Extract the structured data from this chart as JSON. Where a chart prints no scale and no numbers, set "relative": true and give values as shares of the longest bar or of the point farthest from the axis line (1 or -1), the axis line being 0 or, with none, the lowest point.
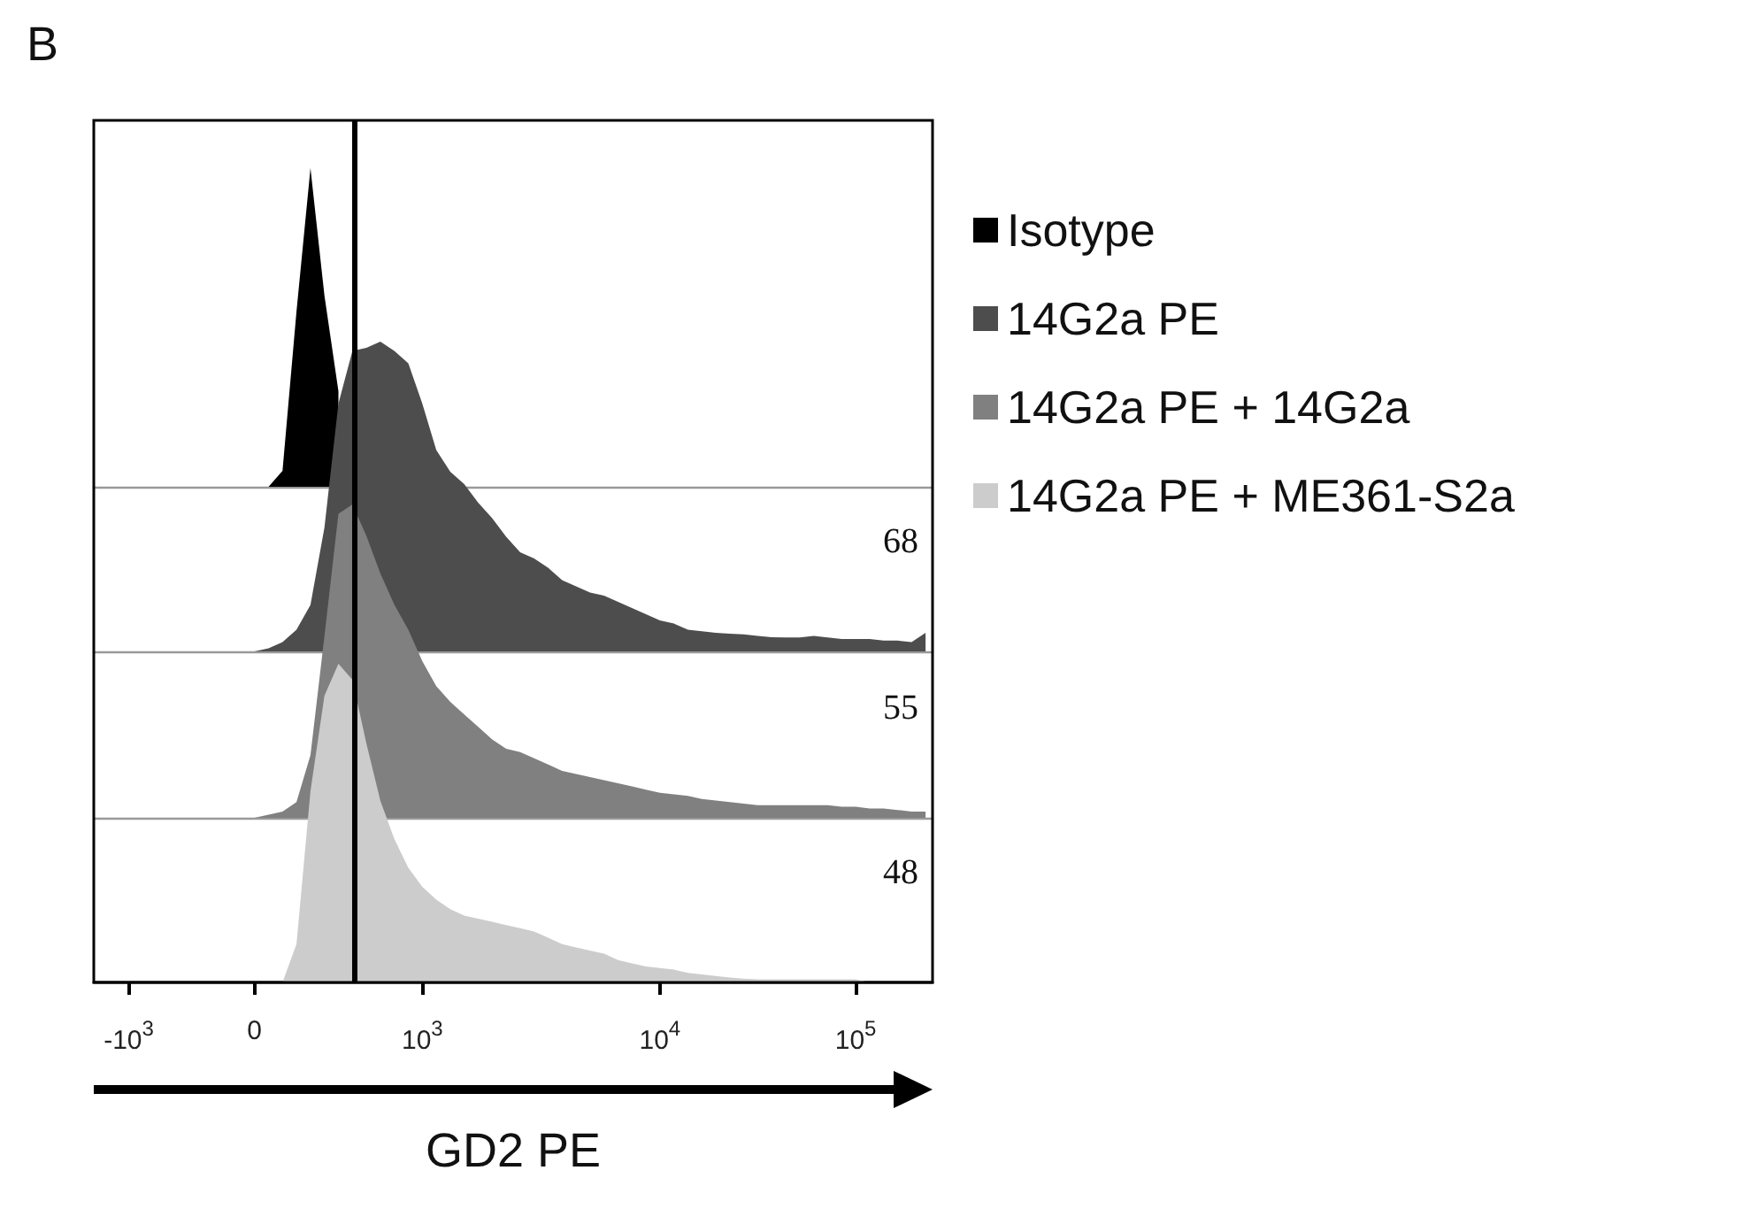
{
  "chart_data": [
    {
      "type": "area",
      "title": "B",
      "relative": true,
      "tick_labels": false,
      "legend": "right",
      "categories": [
        null,
        null,
        null,
        null,
        null,
        null,
        null,
        null,
        null,
        null,
        null,
        null,
        null,
        null,
        null,
        null,
        null,
        null,
        null,
        null,
        null,
        null,
        null,
        null,
        null,
        null,
        null,
        null,
        null,
        null,
        null,
        null,
        null,
        null,
        null,
        null,
        null,
        null,
        null,
        null,
        null,
        null,
        null,
        null,
        null,
        null,
        null,
        null,
        null,
        null,
        null,
        null,
        null,
        null,
        null,
        null,
        null,
        null,
        null,
        null
      ],
      "series": [
        {
          "name": "Isotype",
          "color": "#000000",
          "values": [
            0,
            0,
            0,
            0,
            0,
            0,
            0,
            0,
            0,
            0,
            0,
            0,
            0,
            0.05,
            0.55,
            1.0,
            0.6,
            0.3,
            null,
            null,
            null,
            null,
            null,
            null,
            null,
            null,
            null,
            null,
            null,
            null,
            null,
            null,
            null,
            null,
            null,
            null,
            null,
            null,
            null,
            null,
            null,
            null,
            null,
            null,
            null,
            null,
            null,
            null,
            null,
            null,
            null,
            null,
            null,
            null,
            null,
            null,
            null,
            null,
            null,
            null
          ]
        }
      ]
    },
    {
      "type": "area",
      "relative": true,
      "tick_labels": false,
      "legend": "right",
      "annotations": [
        "68"
      ],
      "categories": [
        null,
        null,
        null,
        null,
        null,
        null,
        null,
        null,
        null,
        null,
        null,
        null,
        null,
        null,
        null,
        null,
        null,
        null,
        null,
        null,
        null,
        null,
        null,
        null,
        null,
        null,
        null,
        null,
        null,
        null,
        null,
        null,
        null,
        null,
        null,
        null,
        null,
        null,
        null,
        null,
        null,
        null,
        null,
        null,
        null,
        null,
        null,
        null,
        null,
        null,
        null,
        null,
        null,
        null,
        null,
        null,
        null,
        null,
        null,
        null
      ],
      "series": [
        {
          "name": "14G2a PE",
          "color": "#4d4d4d",
          "values": [
            0,
            0,
            0,
            0,
            0,
            0,
            0,
            0,
            0,
            0,
            0,
            0,
            0.01,
            0.03,
            0.07,
            0.15,
            0.4,
            0.8,
            0.97,
            0.98,
            1.0,
            0.97,
            0.93,
            0.8,
            0.65,
            0.58,
            0.54,
            0.48,
            0.43,
            0.37,
            0.32,
            0.3,
            0.27,
            0.23,
            0.21,
            0.19,
            0.18,
            0.16,
            0.14,
            0.12,
            0.1,
            0.09,
            0.07,
            0.065,
            0.06,
            0.057,
            0.055,
            0.05,
            0.046,
            0.045,
            0.045,
            0.05,
            0.045,
            0.04,
            0.04,
            0.04,
            0.035,
            0.035,
            0.03,
            0.06
          ]
        }
      ]
    },
    {
      "type": "area",
      "relative": true,
      "tick_labels": false,
      "legend": "right",
      "annotations": [
        "55"
      ],
      "categories": [
        null,
        null,
        null,
        null,
        null,
        null,
        null,
        null,
        null,
        null,
        null,
        null,
        null,
        null,
        null,
        null,
        null,
        null,
        null,
        null,
        null,
        null,
        null,
        null,
        null,
        null,
        null,
        null,
        null,
        null,
        null,
        null,
        null,
        null,
        null,
        null,
        null,
        null,
        null,
        null,
        null,
        null,
        null,
        null,
        null,
        null,
        null,
        null,
        null,
        null,
        null,
        null,
        null,
        null,
        null,
        null,
        null,
        null,
        null,
        null
      ],
      "series": [
        {
          "name": "14G2a PE + 14G2a",
          "color": "#808080",
          "values": [
            0,
            0,
            0,
            0,
            0,
            0,
            0,
            0,
            0,
            0,
            0,
            0,
            0.01,
            0.02,
            0.05,
            0.2,
            0.58,
            0.97,
            1.0,
            0.9,
            0.78,
            0.68,
            0.6,
            0.5,
            0.42,
            0.37,
            0.33,
            0.29,
            0.25,
            0.22,
            0.21,
            0.19,
            0.17,
            0.15,
            0.14,
            0.13,
            0.12,
            0.11,
            0.1,
            0.09,
            0.08,
            0.075,
            0.07,
            0.06,
            0.055,
            0.05,
            0.045,
            0.04,
            0.04,
            0.04,
            0.04,
            0.04,
            0.04,
            0.035,
            0.035,
            0.03,
            0.03,
            0.025,
            0.02,
            0.02
          ]
        }
      ]
    },
    {
      "type": "area",
      "relative": true,
      "tick_labels": "x",
      "legend": "right",
      "annotations": [
        "48"
      ],
      "xlabel": "GD2 PE",
      "categories": [
        null,
        null,
        "-10$^{3}$",
        null,
        null,
        null,
        null,
        null,
        null,
        null,
        null,
        "0",
        null,
        null,
        null,
        null,
        null,
        null,
        null,
        null,
        null,
        null,
        null,
        "10$^{3}$",
        null,
        null,
        null,
        null,
        null,
        null,
        null,
        null,
        null,
        null,
        null,
        null,
        null,
        null,
        null,
        null,
        "10$^{4}$",
        null,
        null,
        null,
        null,
        null,
        null,
        null,
        null,
        null,
        null,
        null,
        null,
        null,
        "10$^{5}$",
        null,
        null,
        null,
        null,
        null
      ],
      "series": [
        {
          "name": "14G2a PE + ME361-S2a",
          "color": "#cccccc",
          "values": [
            0,
            0,
            0,
            0,
            0,
            0,
            0,
            0,
            0,
            0,
            0,
            0,
            0,
            0,
            0.12,
            0.6,
            0.9,
            1.0,
            0.95,
            0.75,
            0.57,
            0.45,
            0.36,
            0.3,
            0.26,
            0.23,
            0.21,
            0.2,
            0.19,
            0.18,
            0.17,
            0.16,
            0.14,
            0.12,
            0.11,
            0.1,
            0.09,
            0.07,
            0.06,
            0.05,
            0.045,
            0.04,
            0.03,
            0.025,
            0.02,
            0.015,
            0.012,
            0.01,
            0.01,
            0.01,
            0.01,
            0.01,
            0.01,
            0.01,
            0.01,
            0,
            0,
            0,
            0,
            0
          ]
        }
      ]
    }
  ]
}
